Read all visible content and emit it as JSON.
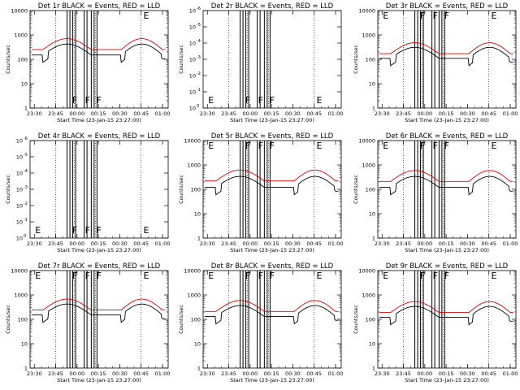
{
  "colors": {
    "events": "#000000",
    "lld": "#e00000",
    "axes": "#000000",
    "background": "#ffffff"
  },
  "x_tick_labels": [
    "23:30",
    "23:45",
    "00:00",
    "00:15",
    "00:30",
    "00:45",
    "01:00"
  ],
  "x_label": "Start Time (23-Jan-15 23:27:00)",
  "y_label": "Counts/sec",
  "chart_data": [
    {
      "type": "line",
      "panel": 1,
      "title": "Det 1r BLACK = Events, RED = LLD",
      "yscale": "log",
      "ylim": [
        1,
        10000
      ],
      "ytick_labels": [
        {
          "m": "1",
          "e": ""
        },
        {
          "m": "10",
          "e": ""
        },
        {
          "m": "100",
          "e": ""
        },
        {
          "m": "1000",
          "e": ""
        },
        {
          "m": "10000",
          "e": ""
        }
      ],
      "series": [
        {
          "name": "Events",
          "color": "#000000",
          "level": 150
        },
        {
          "name": "LLD",
          "color": "#e00000",
          "level": 250
        }
      ],
      "flags": [
        {
          "label": "F",
          "x": "23:56",
          "pos": "low"
        },
        {
          "label": "F",
          "x": "00:05",
          "pos": "low"
        },
        {
          "label": "F",
          "x": "00:13",
          "pos": "low"
        },
        {
          "label": "E",
          "x": "00:46",
          "pos": "top"
        }
      ]
    },
    {
      "type": "line",
      "panel": 2,
      "title": "Det 2r BLACK = Events, RED = LLD",
      "yscale": "log",
      "ylim": [
        1,
        1.0000001
      ],
      "ytick_labels": [
        {
          "m": "10",
          "e": "0"
        },
        {
          "m": "10",
          "e": "-1"
        },
        {
          "m": "10",
          "e": "-2"
        },
        {
          "m": "10",
          "e": "-3"
        },
        {
          "m": "10",
          "e": "-4"
        },
        {
          "m": "10",
          "e": "-5"
        },
        {
          "m": "10",
          "e": "-6"
        }
      ],
      "series": [],
      "flags": [
        {
          "label": "E",
          "x": "23:30",
          "pos": "low"
        },
        {
          "label": "F",
          "x": "23:56",
          "pos": "low"
        },
        {
          "label": "F",
          "x": "00:05",
          "pos": "low"
        },
        {
          "label": "F",
          "x": "00:13",
          "pos": "low"
        },
        {
          "label": "E",
          "x": "00:46",
          "pos": "low"
        }
      ]
    },
    {
      "type": "line",
      "panel": 3,
      "title": "Det 3r BLACK = Events, RED = LLD",
      "yscale": "log",
      "ylim": [
        1,
        10000
      ],
      "ytick_labels": [
        {
          "m": "1",
          "e": ""
        },
        {
          "m": "10",
          "e": ""
        },
        {
          "m": "100",
          "e": ""
        },
        {
          "m": "1000",
          "e": ""
        },
        {
          "m": "10000",
          "e": ""
        }
      ],
      "series": [
        {
          "name": "Events",
          "color": "#000000",
          "level": 110
        },
        {
          "name": "LLD",
          "color": "#e00000",
          "level": 170
        }
      ],
      "flags": [
        {
          "label": "E",
          "x": "23:30",
          "pos": "top"
        },
        {
          "label": "F",
          "x": "23:56",
          "pos": "top"
        },
        {
          "label": "F",
          "x": "00:05",
          "pos": "top"
        },
        {
          "label": "F",
          "x": "00:13",
          "pos": "top"
        },
        {
          "label": "E",
          "x": "00:46",
          "pos": "top"
        }
      ]
    },
    {
      "type": "line",
      "panel": 4,
      "title": "Det 4r BLACK = Events, RED = LLD",
      "yscale": "log",
      "ylim": [
        1,
        1.0000001
      ],
      "ytick_labels": [
        {
          "m": "10",
          "e": "0"
        },
        {
          "m": "10",
          "e": "-1"
        },
        {
          "m": "10",
          "e": "-2"
        },
        {
          "m": "10",
          "e": "-3"
        },
        {
          "m": "10",
          "e": "-4"
        },
        {
          "m": "10",
          "e": "-5"
        },
        {
          "m": "10",
          "e": "-6"
        }
      ],
      "series": [],
      "flags": [
        {
          "label": "E",
          "x": "23:30",
          "pos": "low"
        },
        {
          "label": "F",
          "x": "23:56",
          "pos": "low"
        },
        {
          "label": "F",
          "x": "00:05",
          "pos": "low"
        },
        {
          "label": "F",
          "x": "00:13",
          "pos": "low"
        },
        {
          "label": "E",
          "x": "00:46",
          "pos": "low"
        }
      ]
    },
    {
      "type": "line",
      "panel": 5,
      "title": "Det 5r BLACK = Events, RED = LLD",
      "yscale": "log",
      "ylim": [
        1,
        10000
      ],
      "ytick_labels": [
        {
          "m": "1",
          "e": ""
        },
        {
          "m": "10",
          "e": ""
        },
        {
          "m": "100",
          "e": ""
        },
        {
          "m": "1000",
          "e": ""
        },
        {
          "m": "10000",
          "e": ""
        }
      ],
      "series": [
        {
          "name": "Events",
          "color": "#000000",
          "level": 120
        },
        {
          "name": "LLD",
          "color": "#e00000",
          "level": 220
        }
      ],
      "flags": [
        {
          "label": "E",
          "x": "23:30",
          "pos": "top"
        },
        {
          "label": "F",
          "x": "23:56",
          "pos": "top"
        },
        {
          "label": "F",
          "x": "00:05",
          "pos": "top"
        },
        {
          "label": "F",
          "x": "00:13",
          "pos": "top"
        },
        {
          "label": "E",
          "x": "00:46",
          "pos": "top"
        }
      ]
    },
    {
      "type": "line",
      "panel": 6,
      "title": "Det 6r BLACK = Events, RED = LLD",
      "yscale": "log",
      "ylim": [
        1,
        10000
      ],
      "ytick_labels": [
        {
          "m": "1",
          "e": ""
        },
        {
          "m": "10",
          "e": ""
        },
        {
          "m": "100",
          "e": ""
        },
        {
          "m": "1000",
          "e": ""
        },
        {
          "m": "10000",
          "e": ""
        }
      ],
      "series": [
        {
          "name": "Events",
          "color": "#000000",
          "level": 120
        },
        {
          "name": "LLD",
          "color": "#e00000",
          "level": 210
        }
      ],
      "flags": [
        {
          "label": "E",
          "x": "23:30",
          "pos": "top"
        },
        {
          "label": "F",
          "x": "23:56",
          "pos": "top"
        },
        {
          "label": "F",
          "x": "00:05",
          "pos": "top"
        },
        {
          "label": "F",
          "x": "00:13",
          "pos": "top"
        },
        {
          "label": "E",
          "x": "00:46",
          "pos": "top"
        }
      ]
    },
    {
      "type": "line",
      "panel": 7,
      "title": "Det 7r BLACK = Events, RED = LLD",
      "yscale": "log",
      "ylim": [
        1,
        10000
      ],
      "ytick_labels": [
        {
          "m": "1",
          "e": ""
        },
        {
          "m": "10",
          "e": ""
        },
        {
          "m": "100",
          "e": ""
        },
        {
          "m": "1000",
          "e": ""
        },
        {
          "m": "10000",
          "e": ""
        }
      ],
      "series": [
        {
          "name": "Events",
          "color": "#000000",
          "level": 150
        },
        {
          "name": "LLD",
          "color": "#e00000",
          "level": 240
        }
      ],
      "flags": [
        {
          "label": "E",
          "x": "23:30",
          "pos": "top"
        },
        {
          "label": "F",
          "x": "23:56",
          "pos": "top"
        },
        {
          "label": "F",
          "x": "00:05",
          "pos": "top"
        },
        {
          "label": "F",
          "x": "00:13",
          "pos": "top"
        },
        {
          "label": "E",
          "x": "00:46",
          "pos": "top"
        }
      ]
    },
    {
      "type": "line",
      "panel": 8,
      "title": "Det 8r BLACK = Events, RED = LLD",
      "yscale": "log",
      "ylim": [
        1,
        10000
      ],
      "ytick_labels": [
        {
          "m": "1",
          "e": ""
        },
        {
          "m": "10",
          "e": ""
        },
        {
          "m": "100",
          "e": ""
        },
        {
          "m": "1000",
          "e": ""
        },
        {
          "m": "10000",
          "e": ""
        }
      ],
      "series": [
        {
          "name": "Events",
          "color": "#000000",
          "level": 130
        },
        {
          "name": "LLD",
          "color": "#e00000",
          "level": 210
        }
      ],
      "flags": [
        {
          "label": "E",
          "x": "23:30",
          "pos": "top"
        },
        {
          "label": "F",
          "x": "23:56",
          "pos": "top"
        },
        {
          "label": "F",
          "x": "00:05",
          "pos": "top"
        },
        {
          "label": "F",
          "x": "00:13",
          "pos": "top"
        },
        {
          "label": "E",
          "x": "00:46",
          "pos": "top"
        }
      ]
    },
    {
      "type": "line",
      "panel": 9,
      "title": "Det 9r BLACK = Events, RED = LLD",
      "yscale": "log",
      "ylim": [
        1,
        10000
      ],
      "ytick_labels": [
        {
          "m": "1",
          "e": ""
        },
        {
          "m": "10",
          "e": ""
        },
        {
          "m": "100",
          "e": ""
        },
        {
          "m": "1000",
          "e": ""
        },
        {
          "m": "10000",
          "e": ""
        }
      ],
      "series": [
        {
          "name": "Events",
          "color": "#000000",
          "level": 120
        },
        {
          "name": "LLD",
          "color": "#e00000",
          "level": 190
        }
      ],
      "flags": [
        {
          "label": "E",
          "x": "23:30",
          "pos": "top"
        },
        {
          "label": "F",
          "x": "23:56",
          "pos": "top"
        },
        {
          "label": "F",
          "x": "00:05",
          "pos": "top"
        },
        {
          "label": "F",
          "x": "00:13",
          "pos": "top"
        },
        {
          "label": "E",
          "x": "00:46",
          "pos": "top"
        }
      ]
    }
  ]
}
